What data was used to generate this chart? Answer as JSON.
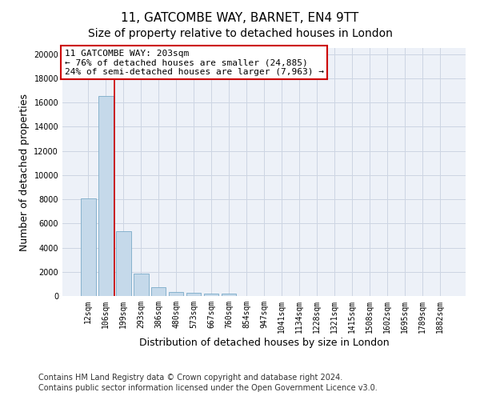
{
  "title": "11, GATCOMBE WAY, BARNET, EN4 9TT",
  "subtitle": "Size of property relative to detached houses in London",
  "xlabel": "Distribution of detached houses by size in London",
  "ylabel": "Number of detached properties",
  "categories": [
    "12sqm",
    "106sqm",
    "199sqm",
    "293sqm",
    "386sqm",
    "480sqm",
    "573sqm",
    "667sqm",
    "760sqm",
    "854sqm",
    "947sqm",
    "1041sqm",
    "1134sqm",
    "1228sqm",
    "1321sqm",
    "1415sqm",
    "1508sqm",
    "1602sqm",
    "1695sqm",
    "1789sqm",
    "1882sqm"
  ],
  "values": [
    8100,
    16500,
    5350,
    1875,
    750,
    340,
    280,
    200,
    200,
    0,
    0,
    0,
    0,
    0,
    0,
    0,
    0,
    0,
    0,
    0,
    0
  ],
  "bar_color": "#c5d9ea",
  "bar_edge_color": "#7aaac8",
  "grid_color": "#ccd5e3",
  "property_line_color": "#cc0000",
  "annotation_line1": "11 GATCOMBE WAY: 203sqm",
  "annotation_line2": "← 76% of detached houses are smaller (24,885)",
  "annotation_line3": "24% of semi-detached houses are larger (7,963) →",
  "annotation_box_color": "#ffffff",
  "annotation_box_edge": "#cc0000",
  "ylim": [
    0,
    20500
  ],
  "yticks": [
    0,
    2000,
    4000,
    6000,
    8000,
    10000,
    12000,
    14000,
    16000,
    18000,
    20000
  ],
  "footnote_line1": "Contains HM Land Registry data © Crown copyright and database right 2024.",
  "footnote_line2": "Contains public sector information licensed under the Open Government Licence v3.0.",
  "background_color": "#edf1f8",
  "fig_bg_color": "#ffffff",
  "title_fontsize": 11,
  "subtitle_fontsize": 10,
  "xlabel_fontsize": 9,
  "ylabel_fontsize": 9,
  "tick_fontsize": 7,
  "annotation_fontsize": 8,
  "footnote_fontsize": 7
}
